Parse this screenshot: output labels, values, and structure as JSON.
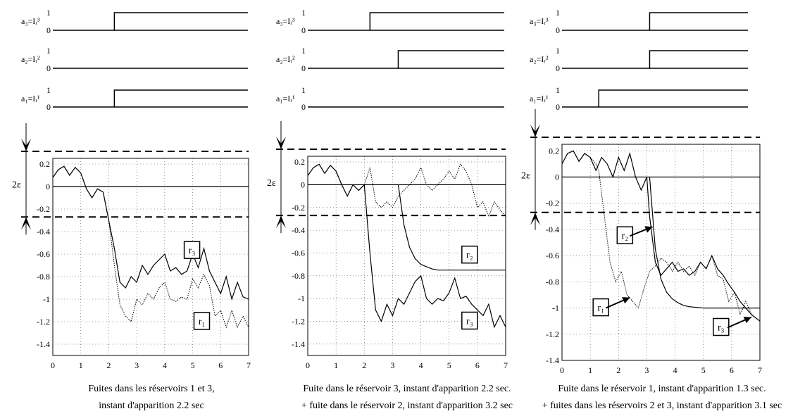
{
  "chart_data": [
    {
      "type": "line",
      "caption": [
        "Fuites dans les réservoirs 1 et 3,",
        "instant d'apparition 2.2 sec"
      ],
      "signals": [
        {
          "label": "a₃=Iᵣ³",
          "high": "1",
          "low": "0",
          "step_time": 2.2
        },
        {
          "label": "a₂=Iᵣ²",
          "high": "1",
          "low": "0",
          "step_time": null
        },
        {
          "label": "a₁=Iᵣ¹",
          "high": "1",
          "low": "0",
          "step_time": 2.2
        }
      ],
      "epsilon_label": "2ε",
      "threshold": 0.27,
      "xlim": [
        0,
        7
      ],
      "ylim": [
        -1.5,
        0.25
      ],
      "xticks": [
        "0",
        "1",
        "2",
        "3",
        "4",
        "5",
        "6",
        "7"
      ],
      "yticks": [
        "0.2",
        "0",
        "-0.2",
        "-0.4",
        "-0.6",
        "-0.8",
        "-1",
        "-1.2",
        "-1.4"
      ],
      "grid": true,
      "series": [
        {
          "name": "r₃",
          "style": "solid",
          "x": [
            0,
            0.2,
            0.4,
            0.6,
            0.8,
            1.0,
            1.2,
            1.4,
            1.6,
            1.8,
            2.0,
            2.2,
            2.4,
            2.6,
            2.8,
            3.0,
            3.2,
            3.4,
            3.6,
            3.8,
            4.0,
            4.2,
            4.4,
            4.6,
            4.8,
            5.0,
            5.2,
            5.4,
            5.6,
            5.8,
            6.0,
            6.2,
            6.4,
            6.6,
            6.8,
            7.0
          ],
          "y": [
            0.08,
            0.15,
            0.18,
            0.1,
            0.17,
            0.12,
            -0.02,
            -0.1,
            -0.02,
            -0.05,
            -0.3,
            -0.55,
            -0.85,
            -0.9,
            -0.8,
            -0.85,
            -0.7,
            -0.78,
            -0.7,
            -0.65,
            -0.6,
            -0.75,
            -0.72,
            -0.78,
            -0.75,
            -0.6,
            -0.72,
            -0.55,
            -0.75,
            -0.85,
            -0.95,
            -0.8,
            -1.0,
            -0.85,
            -0.98,
            -1.0
          ]
        },
        {
          "name": "r₁",
          "style": "dotted",
          "x": [
            0,
            0.2,
            0.4,
            0.6,
            0.8,
            1.0,
            1.2,
            1.4,
            1.6,
            1.8,
            2.0,
            2.2,
            2.4,
            2.6,
            2.8,
            3.0,
            3.2,
            3.4,
            3.6,
            3.8,
            4.0,
            4.2,
            4.4,
            4.6,
            4.8,
            5.0,
            5.2,
            5.4,
            5.6,
            5.8,
            6.0,
            6.2,
            6.4,
            6.6,
            6.8,
            7.0
          ],
          "y": [
            0.08,
            0.15,
            0.18,
            0.1,
            0.17,
            0.12,
            -0.02,
            -0.1,
            -0.02,
            -0.05,
            -0.3,
            -0.7,
            -1.05,
            -1.15,
            -1.2,
            -1.0,
            -1.05,
            -0.95,
            -1.0,
            -0.9,
            -0.85,
            -1.0,
            -1.02,
            -0.98,
            -1.0,
            -0.82,
            -0.9,
            -0.78,
            -0.88,
            -1.15,
            -1.1,
            -1.25,
            -1.1,
            -1.25,
            -1.15,
            -1.25
          ]
        }
      ],
      "labels": [
        {
          "text": "r₃",
          "x": 4.95,
          "y": -0.57
        },
        {
          "text": "r₁",
          "x": 5.3,
          "y": -1.2
        }
      ]
    },
    {
      "type": "line",
      "caption": [
        "Fuite dans le réservoir 3, instant d'apparition 2.2 sec.",
        "+ fuite dans le réservoir 2, instant d'apparition 3.2 sec"
      ],
      "signals": [
        {
          "label": "a₃=Iᵣ³",
          "high": "1",
          "low": "0",
          "step_time": 2.2
        },
        {
          "label": "a₂=Iᵣ²",
          "high": "1",
          "low": "0",
          "step_time": 3.2
        },
        {
          "label": "a₁=Iᵣ¹",
          "high": "1",
          "low": "0",
          "step_time": null
        }
      ],
      "epsilon_label": "2ε",
      "threshold": 0.27,
      "xlim": [
        0,
        7
      ],
      "ylim": [
        -1.5,
        0.25
      ],
      "xticks": [
        "0",
        "1",
        "2",
        "3",
        "4",
        "5",
        "6",
        "7"
      ],
      "yticks": [
        "0.2",
        "0",
        "-0.2",
        "-0.4",
        "-0.6",
        "-0.8",
        "-1",
        "-1.2",
        "-1.4"
      ],
      "grid": true,
      "series": [
        {
          "name": "r₃",
          "style": "solid",
          "x": [
            0,
            0.2,
            0.4,
            0.6,
            0.8,
            1.0,
            1.2,
            1.4,
            1.6,
            1.8,
            2.0,
            2.2,
            2.4,
            2.6,
            2.8,
            3.0,
            3.2,
            3.4,
            3.6,
            3.8,
            4.0,
            4.2,
            4.4,
            4.6,
            4.8,
            5.0,
            5.2,
            5.4,
            5.6,
            5.8,
            6.0,
            6.2,
            6.4,
            6.6,
            6.8,
            7.0
          ],
          "y": [
            0.08,
            0.15,
            0.18,
            0.1,
            0.17,
            0.12,
            0.0,
            -0.1,
            0.0,
            -0.05,
            0.0,
            -0.6,
            -1.1,
            -1.2,
            -1.05,
            -1.15,
            -1.0,
            -1.05,
            -0.95,
            -0.85,
            -0.8,
            -1.0,
            -1.05,
            -1.0,
            -1.02,
            -0.95,
            -0.82,
            -1.0,
            -0.98,
            -1.05,
            -1.1,
            -1.15,
            -1.05,
            -1.25,
            -1.15,
            -1.25
          ]
        },
        {
          "name": "r₂",
          "style": "dotted",
          "x": [
            0,
            0.2,
            0.4,
            0.6,
            0.8,
            1.0,
            1.2,
            1.4,
            1.6,
            1.8,
            2.0,
            2.2,
            2.4,
            2.6,
            2.8,
            3.0,
            3.2,
            3.4,
            3.6,
            3.8,
            4.0,
            4.2,
            4.4,
            4.6,
            4.8,
            5.0,
            5.2,
            5.4,
            5.6,
            5.8,
            6.0,
            6.2,
            6.4,
            6.6,
            6.8,
            7.0
          ],
          "y": [
            0.08,
            0.15,
            0.18,
            0.1,
            0.17,
            0.12,
            0.0,
            -0.1,
            0.0,
            -0.05,
            0.0,
            0.15,
            -0.15,
            -0.2,
            -0.15,
            -0.2,
            -0.1,
            -0.05,
            0.0,
            0.05,
            0.15,
            0.0,
            -0.05,
            0.0,
            0.05,
            0.12,
            0.05,
            0.18,
            0.12,
            0.0,
            -0.2,
            -0.15,
            -0.28,
            -0.15,
            -0.22,
            -0.28
          ]
        },
        {
          "name": "",
          "style": "solid",
          "x": [
            3.2,
            3.4,
            3.6,
            3.8,
            4.0,
            4.2,
            4.4,
            4.6,
            4.8,
            5.0,
            5.5,
            6.0,
            6.5,
            7.0
          ],
          "y": [
            0.0,
            -0.35,
            -0.55,
            -0.65,
            -0.7,
            -0.72,
            -0.74,
            -0.75,
            -0.75,
            -0.75,
            -0.75,
            -0.75,
            -0.75,
            -0.75
          ]
        }
      ],
      "labels": [
        {
          "text": "r₂",
          "x": 5.7,
          "y": -0.62
        },
        {
          "text": "r₃",
          "x": 5.7,
          "y": -1.2
        }
      ]
    },
    {
      "type": "line",
      "caption": [
        "Fuite dans le réservoir 1, instant d'apparition 1.3 sec.",
        "+ fuites dans les réservoirs 2 et 3, instant d'apparition 3.1 sec"
      ],
      "signals": [
        {
          "label": "a₃=Iᵣ³",
          "high": "1",
          "low": "0",
          "step_time": 3.1
        },
        {
          "label": "a₂=Iᵣ²",
          "high": "1",
          "low": "0",
          "step_time": 3.1
        },
        {
          "label": "a₁=Iᵣ¹",
          "high": "1",
          "low": "0",
          "step_time": 1.3
        }
      ],
      "epsilon_label": "2ε",
      "threshold": 0.27,
      "xlim": [
        0,
        7
      ],
      "ylim": [
        -1.4,
        0.25
      ],
      "xticks": [
        "0",
        "1",
        "2",
        "3",
        "4",
        "5",
        "6",
        "7"
      ],
      "yticks": [
        "0.2",
        "0",
        "-0.2",
        "-0.4",
        "-0.6",
        "-0.8",
        "-1",
        "-1.2",
        "-1.4"
      ],
      "grid": true,
      "series": [
        {
          "name": "r₂",
          "style": "solid",
          "x": [
            0,
            0.2,
            0.4,
            0.6,
            0.8,
            1.0,
            1.2,
            1.4,
            1.6,
            1.8,
            2.0,
            2.2,
            2.4,
            2.6,
            2.8,
            3.0,
            3.1,
            3.3,
            3.5,
            3.7,
            3.9,
            4.1,
            4.3,
            4.5,
            4.7,
            4.9,
            5.1,
            5.3,
            5.5,
            5.7,
            5.9,
            6.1,
            6.3,
            6.5,
            6.7,
            7.0
          ],
          "y": [
            0.1,
            0.18,
            0.2,
            0.12,
            0.18,
            0.15,
            0.05,
            0.15,
            0.1,
            0.0,
            0.15,
            0.05,
            0.18,
            0.0,
            -0.1,
            0.0,
            -0.3,
            -0.65,
            -0.75,
            -0.7,
            -0.65,
            -0.72,
            -0.7,
            -0.75,
            -0.72,
            -0.65,
            -0.7,
            -0.6,
            -0.7,
            -0.75,
            -0.82,
            -0.88,
            -0.95,
            -1.0,
            -1.05,
            -1.1
          ]
        },
        {
          "name": "r₁",
          "style": "dotted",
          "x": [
            0,
            0.2,
            0.4,
            0.6,
            0.8,
            1.0,
            1.2,
            1.3,
            1.5,
            1.7,
            1.9,
            2.1,
            2.3,
            2.5,
            2.7,
            2.9,
            3.1,
            3.3,
            3.5,
            3.7,
            3.9,
            4.1,
            4.3,
            4.5,
            4.7,
            4.9,
            5.1,
            5.3,
            5.5,
            5.7,
            5.9,
            6.1,
            6.3,
            6.5,
            6.7,
            7.0
          ],
          "y": [
            0.1,
            0.18,
            0.2,
            0.12,
            0.18,
            0.15,
            0.1,
            0.05,
            -0.3,
            -0.65,
            -0.8,
            -0.72,
            -0.9,
            -0.95,
            -1.0,
            -0.85,
            -0.72,
            -0.68,
            -0.62,
            -0.65,
            -0.72,
            -0.65,
            -0.72,
            -0.68,
            -0.75,
            -0.65,
            -0.7,
            -0.6,
            -0.75,
            -0.78,
            -0.95,
            -0.88,
            -1.05,
            -0.95,
            -1.05,
            -1.1
          ]
        },
        {
          "name": "r₃",
          "style": "solid",
          "x": [
            3.1,
            3.3,
            3.5,
            3.7,
            3.9,
            4.1,
            4.3,
            4.5,
            5.0,
            5.5,
            6.0,
            6.5,
            7.0
          ],
          "y": [
            0.0,
            -0.55,
            -0.78,
            -0.88,
            -0.93,
            -0.96,
            -0.98,
            -0.99,
            -1.0,
            -1.0,
            -1.0,
            -1.0,
            -1.0
          ]
        }
      ],
      "labels": [
        {
          "text": "r₂",
          "x": 2.2,
          "y": -0.45
        },
        {
          "text": "r₁",
          "x": 1.35,
          "y": -1.0
        },
        {
          "text": "r₃",
          "x": 5.6,
          "y": -1.15
        }
      ]
    }
  ]
}
